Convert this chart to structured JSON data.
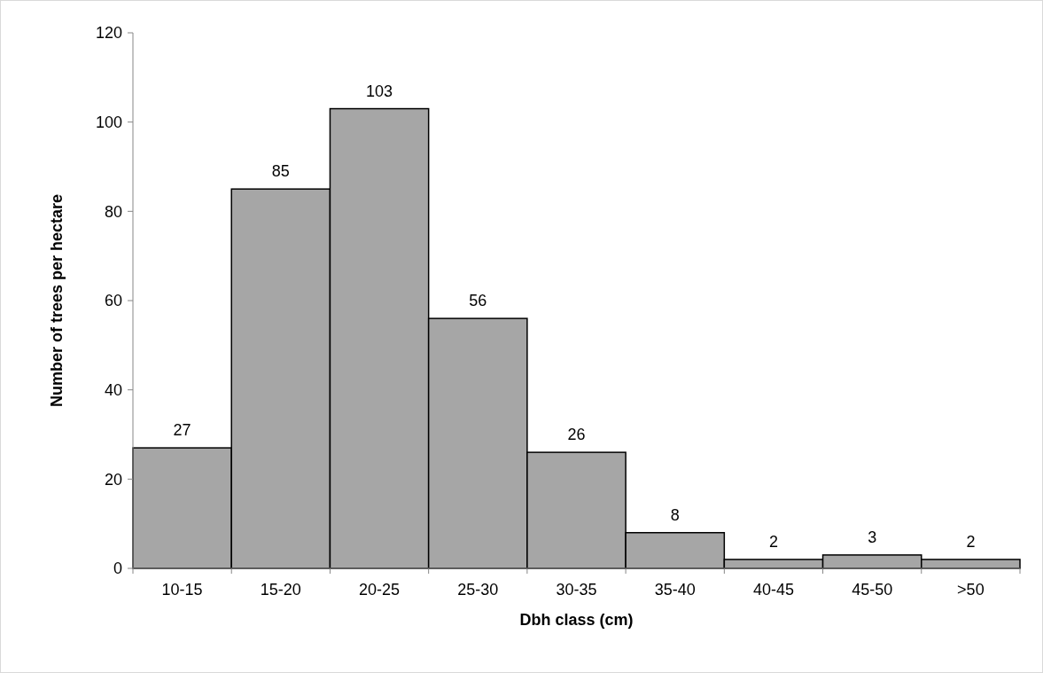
{
  "chart_data": {
    "type": "bar",
    "xlabel": "Dbh class (cm)",
    "ylabel": "Number of trees per hectare",
    "categories": [
      "10-15",
      "15-20",
      "20-25",
      "25-30",
      "30-35",
      "35-40",
      "40-45",
      "45-50",
      ">50"
    ],
    "values": [
      27,
      85,
      103,
      56,
      26,
      8,
      2,
      3,
      2
    ],
    "color": "#a6a6a6",
    "ylim": [
      0,
      120
    ],
    "yticks": [
      0,
      20,
      40,
      60,
      80,
      100,
      120
    ],
    "grid": false,
    "data_labels": true
  }
}
